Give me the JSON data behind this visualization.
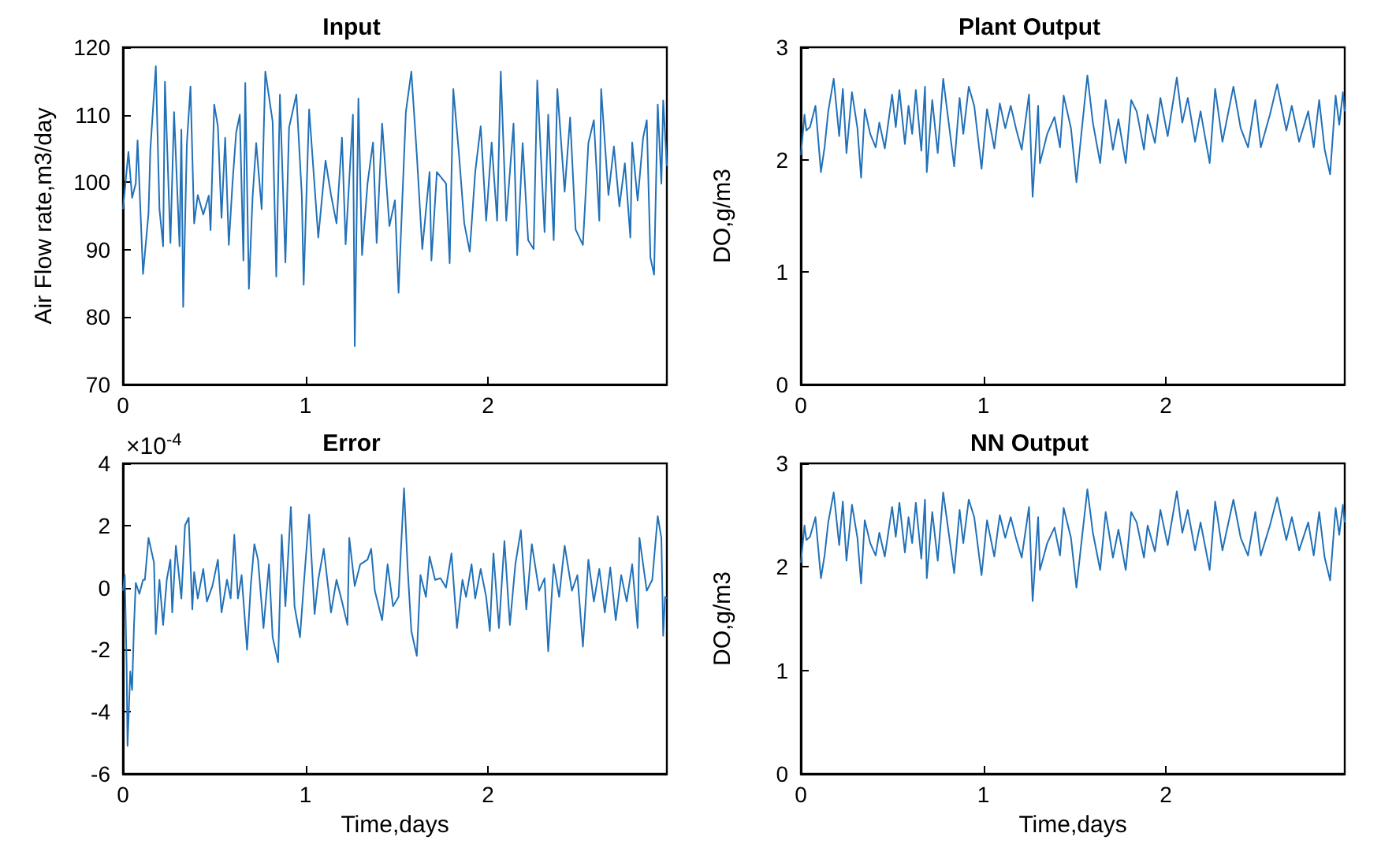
{
  "chart_data": [
    {
      "type": "line",
      "title": "Input",
      "ylabel": "Air Flow rate,m3/day",
      "color": "#2271b8",
      "xlim": [
        0,
        2.98
      ],
      "xticks": [
        0,
        1,
        2
      ],
      "ylim": [
        70,
        120
      ],
      "yticks": [
        70,
        80,
        90,
        100,
        110,
        120
      ],
      "x": [
        0,
        0.03,
        0.05,
        0.07,
        0.08,
        0.11,
        0.14,
        0.15,
        0.18,
        0.2,
        0.22,
        0.23,
        0.26,
        0.28,
        0.31,
        0.32,
        0.33,
        0.35,
        0.37,
        0.39,
        0.41,
        0.44,
        0.47,
        0.48,
        0.5,
        0.52,
        0.54,
        0.56,
        0.58,
        0.6,
        0.62,
        0.64,
        0.66,
        0.67,
        0.69,
        0.71,
        0.73,
        0.76,
        0.78,
        0.82,
        0.84,
        0.86,
        0.89,
        0.91,
        0.95,
        0.98,
        0.99,
        1.02,
        1.07,
        1.11,
        1.14,
        1.17,
        1.2,
        1.22,
        1.26,
        1.27,
        1.29,
        1.31,
        1.34,
        1.37,
        1.39,
        1.42,
        1.46,
        1.49,
        1.51,
        1.55,
        1.58,
        1.61,
        1.64,
        1.68,
        1.69,
        1.72,
        1.77,
        1.79,
        1.81,
        1.84,
        1.87,
        1.9,
        1.93,
        1.96,
        1.99,
        2.02,
        2.05,
        2.07,
        2.1,
        2.14,
        2.16,
        2.19,
        2.22,
        2.25,
        2.27,
        2.31,
        2.33,
        2.36,
        2.38,
        2.42,
        2.45,
        2.48,
        2.52,
        2.55,
        2.58,
        2.61,
        2.62,
        2.66,
        2.69,
        2.72,
        2.75,
        2.78,
        2.79,
        2.82,
        2.85,
        2.87,
        2.89,
        2.91,
        2.93,
        2.95,
        2.96,
        2.98
      ],
      "values": [
        96,
        104.5,
        97.7,
        99.8,
        106.2,
        86.4,
        95.4,
        104.8,
        117.2,
        96,
        90.5,
        114.9,
        91,
        110.4,
        90.5,
        107.8,
        81.5,
        105.6,
        114.2,
        93.9,
        98.1,
        95.2,
        98,
        92.9,
        111.5,
        108.3,
        94.7,
        106.6,
        90.7,
        99.8,
        107.3,
        110,
        88.4,
        114.7,
        84.2,
        97.7,
        105.8,
        96,
        116.4,
        109,
        86,
        113,
        88.1,
        108.1,
        113,
        98,
        84.8,
        110.8,
        91.8,
        103.2,
        98.1,
        93.9,
        106.6,
        90.8,
        110,
        75.7,
        112.4,
        89.2,
        99.8,
        105.9,
        91,
        108.7,
        93.5,
        97.3,
        83.6,
        110.4,
        116.4,
        104.1,
        90.1,
        101.5,
        88.4,
        101.5,
        99.8,
        88,
        113.8,
        104.5,
        93.9,
        89.7,
        101.5,
        108.3,
        94.3,
        105.9,
        94.3,
        116.4,
        94.3,
        108.7,
        89.2,
        105.8,
        91.4,
        90.1,
        115.1,
        92.6,
        110,
        91.4,
        113.8,
        98.6,
        109.6,
        93,
        90.7,
        105.8,
        109.2,
        94.3,
        113.8,
        98.1,
        105.3,
        96.4,
        102.8,
        91.8,
        105.9,
        97.3,
        106.6,
        109.2,
        88.8,
        86.3,
        111.5,
        99.8,
        112.1,
        102.4
      ]
    },
    {
      "type": "line",
      "title": "Plant Output",
      "ylabel": "DO,g/m3",
      "color": "#2271b8",
      "xlim": [
        0,
        2.98
      ],
      "xticks": [
        0,
        1,
        2
      ],
      "ylim": [
        0,
        3
      ],
      "yticks": [
        0,
        1,
        2,
        3
      ],
      "x": [
        0,
        0.02,
        0.03,
        0.05,
        0.08,
        0.11,
        0.13,
        0.15,
        0.18,
        0.21,
        0.23,
        0.25,
        0.28,
        0.31,
        0.33,
        0.35,
        0.38,
        0.41,
        0.43,
        0.46,
        0.5,
        0.52,
        0.54,
        0.57,
        0.59,
        0.61,
        0.63,
        0.66,
        0.68,
        0.69,
        0.72,
        0.75,
        0.78,
        0.81,
        0.84,
        0.87,
        0.89,
        0.92,
        0.95,
        0.99,
        1.02,
        1.06,
        1.09,
        1.12,
        1.15,
        1.18,
        1.21,
        1.25,
        1.27,
        1.3,
        1.31,
        1.35,
        1.39,
        1.42,
        1.44,
        1.48,
        1.51,
        1.54,
        1.57,
        1.6,
        1.64,
        1.67,
        1.71,
        1.74,
        1.78,
        1.81,
        1.84,
        1.88,
        1.9,
        1.94,
        1.97,
        2.01,
        2.06,
        2.09,
        2.12,
        2.16,
        2.19,
        2.24,
        2.27,
        2.31,
        2.37,
        2.41,
        2.45,
        2.49,
        2.52,
        2.57,
        2.61,
        2.66,
        2.69,
        2.73,
        2.78,
        2.81,
        2.84,
        2.87,
        2.9,
        2.93,
        2.95,
        2.97,
        2.98
      ],
      "values": [
        2.04,
        2.4,
        2.26,
        2.29,
        2.48,
        1.89,
        2.11,
        2.43,
        2.72,
        2.21,
        2.63,
        2.06,
        2.6,
        2.28,
        1.84,
        2.45,
        2.23,
        2.11,
        2.33,
        2.1,
        2.58,
        2.29,
        2.62,
        2.14,
        2.48,
        2.23,
        2.62,
        2.08,
        2.65,
        1.89,
        2.53,
        2.06,
        2.72,
        2.33,
        1.94,
        2.55,
        2.23,
        2.65,
        2.48,
        1.92,
        2.45,
        2.1,
        2.5,
        2.28,
        2.48,
        2.27,
        2.09,
        2.58,
        1.67,
        2.48,
        1.97,
        2.23,
        2.38,
        2.11,
        2.57,
        2.28,
        1.8,
        2.28,
        2.75,
        2.33,
        1.97,
        2.53,
        2.09,
        2.36,
        1.97,
        2.53,
        2.43,
        2.09,
        2.4,
        2.15,
        2.55,
        2.21,
        2.73,
        2.33,
        2.55,
        2.16,
        2.43,
        1.97,
        2.63,
        2.16,
        2.65,
        2.28,
        2.11,
        2.53,
        2.11,
        2.4,
        2.67,
        2.26,
        2.48,
        2.16,
        2.43,
        2.11,
        2.53,
        2.09,
        1.87,
        2.57,
        2.31,
        2.6,
        2.43
      ]
    },
    {
      "type": "line",
      "title": "Error",
      "xlabel": "Time,days",
      "annotations": [
        "×10$^{-4}$"
      ],
      "color": "#2271b8",
      "xlim": [
        0,
        2.98
      ],
      "xticks": [
        0,
        1,
        2
      ],
      "ylim": [
        -6,
        4
      ],
      "yticks": [
        -6,
        -4,
        -2,
        0,
        2,
        4
      ],
      "x": [
        0,
        0.01,
        0.02,
        0.025,
        0.04,
        0.05,
        0.06,
        0.07,
        0.09,
        0.11,
        0.12,
        0.14,
        0.17,
        0.18,
        0.2,
        0.22,
        0.24,
        0.26,
        0.27,
        0.29,
        0.32,
        0.34,
        0.36,
        0.38,
        0.39,
        0.41,
        0.44,
        0.46,
        0.49,
        0.52,
        0.54,
        0.57,
        0.59,
        0.61,
        0.63,
        0.65,
        0.68,
        0.7,
        0.72,
        0.74,
        0.77,
        0.8,
        0.82,
        0.85,
        0.87,
        0.89,
        0.92,
        0.94,
        0.97,
        0.99,
        1.02,
        1.05,
        1.07,
        1.1,
        1.14,
        1.17,
        1.2,
        1.23,
        1.24,
        1.27,
        1.3,
        1.34,
        1.36,
        1.38,
        1.42,
        1.45,
        1.48,
        1.51,
        1.54,
        1.56,
        1.58,
        1.61,
        1.63,
        1.66,
        1.68,
        1.71,
        1.74,
        1.77,
        1.8,
        1.83,
        1.86,
        1.88,
        1.91,
        1.93,
        1.96,
        1.99,
        2.01,
        2.03,
        2.06,
        2.09,
        2.12,
        2.15,
        2.18,
        2.21,
        2.24,
        2.28,
        2.31,
        2.33,
        2.36,
        2.39,
        2.42,
        2.46,
        2.49,
        2.52,
        2.55,
        2.58,
        2.61,
        2.64,
        2.67,
        2.7,
        2.73,
        2.76,
        2.79,
        2.82,
        2.83,
        2.87,
        2.9,
        2.93,
        2.95,
        2.96,
        2.97,
        2.98
      ],
      "values": [
        -0.1,
        0.4,
        -2.5,
        -5.1,
        -2.7,
        -3.3,
        -1.3,
        0.15,
        -0.2,
        0.25,
        0.25,
        1.6,
        0.8,
        -1.5,
        0.25,
        -1.2,
        0.25,
        0.9,
        -0.8,
        1.35,
        -0.35,
        2,
        2.25,
        -0.7,
        0.5,
        -0.35,
        0.6,
        -0.45,
        0.05,
        0.9,
        -0.8,
        0.25,
        -0.35,
        1.7,
        -0.35,
        0.4,
        -2,
        0.05,
        1.4,
        0.9,
        -1.3,
        0.75,
        -1.6,
        -2.4,
        1.7,
        -0.6,
        2.6,
        -0.6,
        -1.6,
        0.05,
        2.35,
        -0.85,
        0.25,
        1.25,
        -0.8,
        0.25,
        -0.45,
        -1.2,
        1.6,
        0.05,
        0.75,
        0.9,
        1.25,
        -0.1,
        -1.05,
        0.75,
        -0.6,
        -0.3,
        3.2,
        0.6,
        -1.4,
        -2.2,
        0.4,
        -0.3,
        1,
        0.25,
        0.3,
        0,
        1.1,
        -1.3,
        0.25,
        -0.3,
        0.75,
        -0.35,
        0.6,
        -0.3,
        -1.4,
        1.1,
        -1.3,
        1.5,
        -1.2,
        0.75,
        1.85,
        -0.7,
        1.4,
        -0.1,
        0.3,
        -2.05,
        0.75,
        -0.3,
        1.35,
        -0.1,
        0.4,
        -1.9,
        0.9,
        -0.45,
        0.6,
        -0.8,
        0.65,
        -1.05,
        0.4,
        -0.45,
        0.75,
        -1.3,
        1.6,
        -0.1,
        0.25,
        2.3,
        1.6,
        -1.55,
        -0.3,
        -0.35
      ]
    },
    {
      "type": "line",
      "title": "NN Output",
      "xlabel": "Time,days",
      "ylabel": "DO,g/m3",
      "color": "#2271b8",
      "xlim": [
        0,
        2.98
      ],
      "xticks": [
        0,
        1,
        2
      ],
      "ylim": [
        0,
        3
      ],
      "yticks": [
        0,
        1,
        2,
        3
      ],
      "x": [
        0,
        0.02,
        0.03,
        0.05,
        0.08,
        0.11,
        0.13,
        0.15,
        0.18,
        0.21,
        0.23,
        0.25,
        0.28,
        0.31,
        0.33,
        0.35,
        0.38,
        0.41,
        0.43,
        0.46,
        0.5,
        0.52,
        0.54,
        0.57,
        0.59,
        0.61,
        0.63,
        0.66,
        0.68,
        0.69,
        0.72,
        0.75,
        0.78,
        0.81,
        0.84,
        0.87,
        0.89,
        0.92,
        0.95,
        0.99,
        1.02,
        1.06,
        1.09,
        1.12,
        1.15,
        1.18,
        1.21,
        1.25,
        1.27,
        1.3,
        1.31,
        1.35,
        1.39,
        1.42,
        1.44,
        1.48,
        1.51,
        1.54,
        1.57,
        1.6,
        1.64,
        1.67,
        1.71,
        1.74,
        1.78,
        1.81,
        1.84,
        1.88,
        1.9,
        1.94,
        1.97,
        2.01,
        2.06,
        2.09,
        2.12,
        2.16,
        2.19,
        2.24,
        2.27,
        2.31,
        2.37,
        2.41,
        2.45,
        2.49,
        2.52,
        2.57,
        2.61,
        2.66,
        2.69,
        2.73,
        2.78,
        2.81,
        2.84,
        2.87,
        2.9,
        2.93,
        2.95,
        2.97,
        2.98
      ],
      "values": [
        2.04,
        2.4,
        2.26,
        2.29,
        2.48,
        1.89,
        2.11,
        2.43,
        2.72,
        2.21,
        2.63,
        2.06,
        2.6,
        2.28,
        1.84,
        2.45,
        2.23,
        2.11,
        2.33,
        2.1,
        2.58,
        2.29,
        2.62,
        2.14,
        2.48,
        2.23,
        2.62,
        2.08,
        2.65,
        1.89,
        2.53,
        2.06,
        2.72,
        2.33,
        1.94,
        2.55,
        2.23,
        2.65,
        2.48,
        1.92,
        2.45,
        2.1,
        2.5,
        2.28,
        2.48,
        2.27,
        2.09,
        2.58,
        1.67,
        2.48,
        1.97,
        2.23,
        2.38,
        2.11,
        2.57,
        2.28,
        1.8,
        2.28,
        2.75,
        2.33,
        1.97,
        2.53,
        2.09,
        2.36,
        1.97,
        2.53,
        2.43,
        2.09,
        2.4,
        2.15,
        2.55,
        2.21,
        2.73,
        2.33,
        2.55,
        2.16,
        2.43,
        1.97,
        2.63,
        2.16,
        2.65,
        2.28,
        2.11,
        2.53,
        2.11,
        2.4,
        2.67,
        2.26,
        2.48,
        2.16,
        2.43,
        2.11,
        2.53,
        2.09,
        1.87,
        2.57,
        2.31,
        2.6,
        2.43
      ]
    }
  ]
}
